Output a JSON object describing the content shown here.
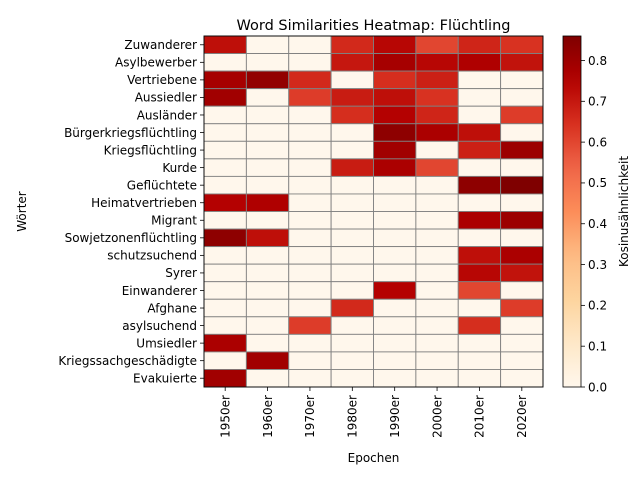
{
  "chart_data": {
    "type": "heatmap",
    "title": "Word Similarities Heatmap: Flüchtling",
    "xlabel": "Epochen",
    "ylabel": "Wörter",
    "colorbar_label": "Kosinusähnlichkeit",
    "colormap": "OrRd",
    "vmin": 0,
    "vmax": 0.86,
    "colorbar_ticks": [
      "0.0",
      "0.1",
      "0.2",
      "0.3",
      "0.4",
      "0.5",
      "0.6",
      "0.7",
      "0.8"
    ],
    "cell_edge_color": "#808080",
    "x": [
      "1950er",
      "1960er",
      "1970er",
      "1980er",
      "1990er",
      "2000er",
      "2010er",
      "2020er"
    ],
    "y": [
      "Zuwanderer",
      "Asylbewerber",
      "Vertriebene",
      "Aussiedler",
      "Ausländer",
      "Bürgerkriegsflüchtling",
      "Kriegsflüchtling",
      "Kurde",
      "Geflüchtete",
      "Heimatvertrieben",
      "Migrant",
      "Sowjetzonenflüchtling",
      "schutzsuchend",
      "Syrer",
      "Einwanderer",
      "Afghane",
      "asylsuchend",
      "Umsiedler",
      "Kriegssachgeschädigte",
      "Evakuierte"
    ],
    "values": [
      [
        0.72,
        0,
        0,
        0.66,
        0.74,
        0.6,
        0.67,
        0.64
      ],
      [
        0,
        0,
        0,
        0.7,
        0.78,
        0.74,
        0.76,
        0.71
      ],
      [
        0.78,
        0.82,
        0.66,
        0,
        0.65,
        0.68,
        0,
        0
      ],
      [
        0.79,
        0,
        0.62,
        0.69,
        0.72,
        0.64,
        0,
        0
      ],
      [
        0,
        0,
        0,
        0.65,
        0.75,
        0.67,
        0,
        0.62
      ],
      [
        0,
        0,
        0,
        0,
        0.83,
        0.77,
        0.72,
        0
      ],
      [
        0,
        0,
        0,
        0,
        0.79,
        0,
        0.68,
        0.8
      ],
      [
        0,
        0,
        0,
        0.69,
        0.77,
        0.6,
        0,
        0
      ],
      [
        0,
        0,
        0,
        0,
        0,
        0,
        0.83,
        0.86
      ],
      [
        0.75,
        0.76,
        0,
        0,
        0,
        0,
        0,
        0
      ],
      [
        0,
        0,
        0,
        0,
        0,
        0,
        0.77,
        0.8
      ],
      [
        0.83,
        0.72,
        0,
        0,
        0,
        0,
        0,
        0
      ],
      [
        0,
        0,
        0,
        0,
        0,
        0,
        0.72,
        0.77
      ],
      [
        0,
        0,
        0,
        0,
        0,
        0,
        0.74,
        0.71
      ],
      [
        0,
        0,
        0,
        0,
        0.75,
        0,
        0.6,
        0
      ],
      [
        0,
        0,
        0,
        0.66,
        0,
        0,
        0,
        0.62
      ],
      [
        0,
        0,
        0.62,
        0,
        0,
        0,
        0.65,
        0
      ],
      [
        0.77,
        0,
        0,
        0,
        0,
        0,
        0,
        0
      ],
      [
        0,
        0.79,
        0,
        0,
        0,
        0,
        0,
        0
      ],
      [
        0.79,
        0,
        0,
        0,
        0,
        0,
        0,
        0
      ]
    ]
  }
}
